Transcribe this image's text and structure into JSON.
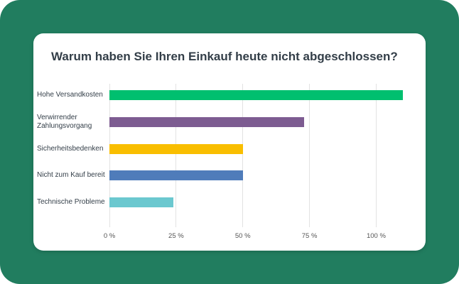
{
  "title": "Warum haben Sie Ihren Einkauf heute nicht abgeschlossen?",
  "chart_data": {
    "type": "bar",
    "orientation": "horizontal",
    "categories": [
      "Hohe Versandkosten",
      "Verwirrender Zahlungsvorgang",
      "Sicherheitsbedenken",
      "Nicht zum Kauf bereit",
      "Technische Probleme"
    ],
    "values": [
      110,
      73,
      50,
      50,
      24
    ],
    "colors": [
      "#00bf6f",
      "#7d5c91",
      "#f9be00",
      "#4f7cba",
      "#6bc8cf"
    ],
    "xlim": [
      0,
      110
    ],
    "xticks": [
      {
        "value": 0,
        "label": "0 %"
      },
      {
        "value": 25,
        "label": "25 %"
      },
      {
        "value": 50,
        "label": "50 %"
      },
      {
        "value": 75,
        "label": "75 %"
      },
      {
        "value": 100,
        "label": "100 %"
      }
    ],
    "grid": true
  }
}
